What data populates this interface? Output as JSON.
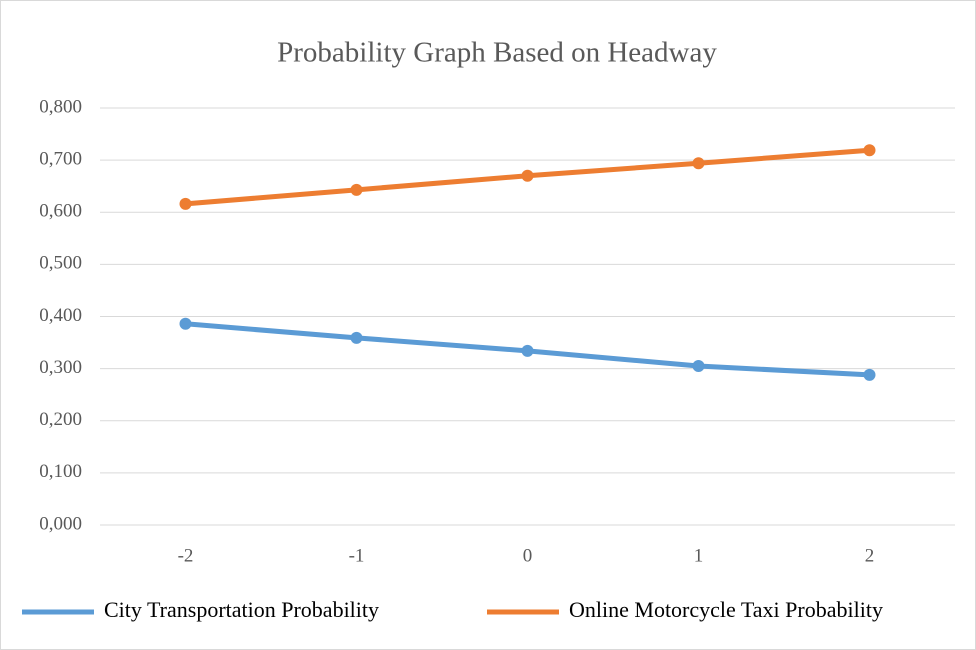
{
  "chart_data": {
    "type": "line",
    "title": "Probability Graph Based on Headway",
    "categories": [
      "-2",
      "-1",
      "0",
      "1",
      "2"
    ],
    "series": [
      {
        "name": "City Transportation Probability",
        "color": "#5b9bd5",
        "values": [
          0.386,
          0.359,
          0.334,
          0.305,
          0.288
        ]
      },
      {
        "name": "Online Motorcycle Taxi Probability",
        "color": "#ed7d31",
        "values": [
          0.616,
          0.643,
          0.67,
          0.694,
          0.719
        ]
      }
    ],
    "ylim": [
      0,
      0.8
    ],
    "yticks": [
      {
        "value": 0,
        "label": "0,000"
      },
      {
        "value": 0.1,
        "label": "0,100"
      },
      {
        "value": 0.2,
        "label": "0,200"
      },
      {
        "value": 0.3,
        "label": "0,300"
      },
      {
        "value": 0.4,
        "label": "0,400"
      },
      {
        "value": 0.5,
        "label": "0,500"
      },
      {
        "value": 0.6,
        "label": "0,600"
      },
      {
        "value": 0.7,
        "label": "0,700"
      },
      {
        "value": 0.8,
        "label": "0,800"
      }
    ],
    "grid": true,
    "legend": "bottom"
  }
}
